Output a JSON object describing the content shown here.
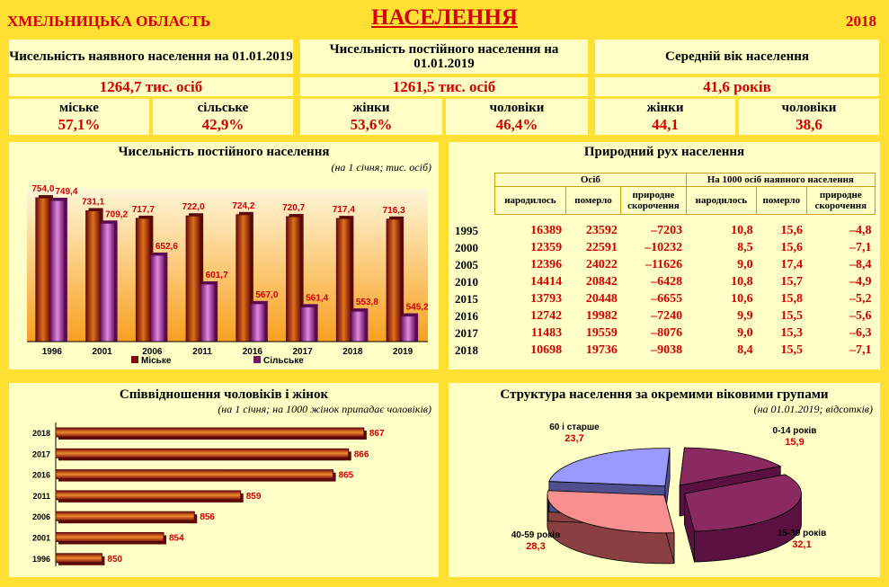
{
  "header": {
    "region": "ХМЕЛЬНИЦЬКА ОБЛАСТЬ",
    "title": "НАСЕЛЕННЯ",
    "year": "2018"
  },
  "kpis": [
    {
      "title": "Чисельність наявного населення на 01.01.2019",
      "value": "1264,7 тис. осіб",
      "left_label": "міське",
      "left_value": "57,1%",
      "right_label": "сільське",
      "right_value": "42,9%"
    },
    {
      "title": "Чисельність постійного населення на 01.01.2019",
      "value": "1261,5 тис. осіб",
      "left_label": "жінки",
      "left_value": "53,6%",
      "right_label": "чоловіки",
      "right_value": "46,4%"
    },
    {
      "title": "Середній вік населення",
      "value": "41,6 років",
      "left_label": "жінки",
      "left_value": "44,1",
      "right_label": "чоловіки",
      "right_value": "38,6"
    }
  ],
  "population_chart": {
    "title": "Чисельність постійного населення",
    "subtitle": "(на 1 січня; тис. осіб)",
    "legend": [
      "Міське",
      "Сільське"
    ]
  },
  "natural_movement": {
    "title": "Природний рух населення",
    "group1": "Осіб",
    "group2": "На 1000 осіб наявного населення",
    "cols": [
      "народилось",
      "померло",
      "природне скорочення",
      "народилось",
      "померло",
      "природне скорочення"
    ],
    "rows": [
      [
        "1995",
        "16389",
        "23592",
        "–7203",
        "10,8",
        "15,6",
        "–4,8"
      ],
      [
        "2000",
        "12359",
        "22591",
        "–10232",
        "8,5",
        "15,6",
        "–7,1"
      ],
      [
        "2005",
        "12396",
        "24022",
        "–11626",
        "9,0",
        "17,4",
        "–8,4"
      ],
      [
        "2010",
        "14414",
        "20842",
        "–6428",
        "10,8",
        "15,7",
        "–4,9"
      ],
      [
        "2015",
        "13793",
        "20448",
        "–6655",
        "10,6",
        "15,8",
        "–5,2"
      ],
      [
        "2016",
        "12742",
        "19982",
        "–7240",
        "9,9",
        "15,5",
        "–5,6"
      ],
      [
        "2017",
        "11483",
        "19559",
        "–8076",
        "9,0",
        "15,3",
        "–6,3"
      ],
      [
        "2018",
        "10698",
        "19736",
        "–9038",
        "8,4",
        "15,5",
        "–7,1"
      ]
    ]
  },
  "ratio_chart": {
    "title": "Співвідношення чоловіків і жінок",
    "subtitle": "(на 1 січня; на 1000 жінок припадає чоловіків)"
  },
  "age_chart": {
    "title": "Структура населення за окремими віковими групами",
    "subtitle": "(на 01.01.2019; відсотків)"
  },
  "colors": {
    "accent": "#D40000",
    "frame": "#FFE033",
    "panel": "#FFFFC6",
    "bar_dark": "#7A1010",
    "bar_orange": "#E0701A",
    "bar_pink": "#CC66CC"
  },
  "chart_data": [
    {
      "type": "bar",
      "title": "Чисельність постійного населення",
      "categories": [
        "1996",
        "2001",
        "2006",
        "2011",
        "2016",
        "2017",
        "2018",
        "2019"
      ],
      "series": [
        {
          "name": "Міське",
          "values": [
            754.0,
            731.1,
            717.7,
            722.0,
            724.2,
            720.7,
            717.4,
            716.3
          ],
          "labels": [
            "754,0",
            "731,1",
            "717,7",
            "722,0",
            "724,2",
            "720,7",
            "717,4",
            "716,3"
          ]
        },
        {
          "name": "Сільське",
          "values": [
            749.4,
            709.2,
            652.6,
            601.7,
            567.0,
            561.4,
            553.8,
            545.2
          ],
          "labels": [
            "749,4",
            "709,2",
            "652,6",
            "601,7",
            "567,0",
            "561,4",
            "553,8",
            "545,2"
          ]
        }
      ],
      "ylim": [
        500,
        770
      ],
      "legend": "bottom"
    },
    {
      "type": "bar",
      "orientation": "horizontal",
      "title": "Співвідношення чоловіків і жінок",
      "categories": [
        "2018",
        "2017",
        "2016",
        "2011",
        "2006",
        "2001",
        "1996"
      ],
      "values": [
        867,
        866,
        865,
        859,
        856,
        854,
        850
      ],
      "labels": [
        "867",
        "866",
        "865",
        "859",
        "856",
        "854",
        "850"
      ],
      "xlim": [
        847,
        868
      ]
    },
    {
      "type": "pie",
      "title": "Структура населення за окремими віковими групами",
      "slices": [
        {
          "label": "0-14 років",
          "value": 15.9,
          "text": "15,9",
          "color": "#7A1F55"
        },
        {
          "label": "15-39 років",
          "value": 32.1,
          "text": "32,1",
          "color": "#7A1F55"
        },
        {
          "label": "40-59 років",
          "value": 28.3,
          "text": "28,3",
          "color": "#F08080"
        },
        {
          "label": "60 і старше",
          "value": 23.7,
          "text": "23,7",
          "color": "#9999FF"
        }
      ]
    }
  ]
}
